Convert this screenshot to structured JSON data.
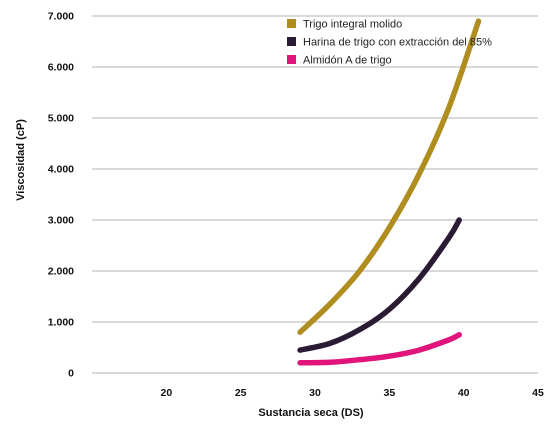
{
  "chart_data": {
    "type": "line",
    "title": "",
    "xlabel": "Sustancia seca (DS)",
    "ylabel": "Viscosidad (cP)",
    "xlim": [
      15,
      45
    ],
    "ylim": [
      0,
      7000
    ],
    "x_ticks": [
      "20",
      "25",
      "30",
      "35",
      "40",
      "45"
    ],
    "x_tick_values": [
      20,
      25,
      30,
      35,
      40,
      45
    ],
    "y_ticks": [
      "0",
      "1.000",
      "2.000",
      "3.000",
      "4.000",
      "5.000",
      "6.000",
      "7.000"
    ],
    "y_tick_values": [
      0,
      1000,
      2000,
      3000,
      4000,
      5000,
      6000,
      7000
    ],
    "grid": "horizontal",
    "legend_position": "top-right",
    "series": [
      {
        "name": "Trigo integral molido",
        "color": "#b08d1f",
        "x": [
          29,
          31,
          33,
          35,
          37,
          39,
          41
        ],
        "y": [
          800,
          1350,
          2000,
          2850,
          3900,
          5200,
          6900
        ]
      },
      {
        "name": "Harina de trigo con extracción del 85%",
        "color": "#2b1a33",
        "x": [
          29,
          31,
          33,
          35,
          37,
          39,
          39.7
        ],
        "y": [
          450,
          580,
          850,
          1250,
          1850,
          2650,
          3000
        ]
      },
      {
        "name": "Almidón A de trigo",
        "color": "#e0147a",
        "x": [
          29,
          31,
          33,
          35,
          37,
          39,
          39.7
        ],
        "y": [
          200,
          210,
          260,
          330,
          450,
          650,
          750
        ]
      }
    ]
  }
}
